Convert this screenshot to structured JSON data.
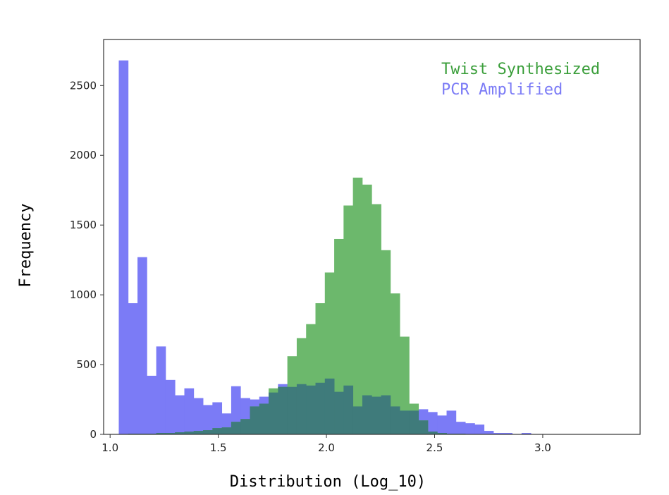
{
  "chart_data": {
    "type": "bar",
    "title": "",
    "xlabel": "Distribution (Log_10)",
    "ylabel": "Frequency",
    "xlim": [
      0.97,
      3.45
    ],
    "ylim": [
      0,
      2830
    ],
    "x_ticks": [
      {
        "value": 1.0,
        "label": "1.0"
      },
      {
        "value": 1.5,
        "label": "1.5"
      },
      {
        "value": 2.0,
        "label": "2.0"
      },
      {
        "value": 2.5,
        "label": "2.5"
      },
      {
        "value": 3.0,
        "label": "3.0"
      }
    ],
    "y_ticks": [
      {
        "value": 0,
        "label": "0"
      },
      {
        "value": 500,
        "label": "500"
      },
      {
        "value": 1000,
        "label": "1000"
      },
      {
        "value": 1500,
        "label": "1500"
      },
      {
        "value": 2000,
        "label": "2000"
      },
      {
        "value": 2500,
        "label": "2500"
      }
    ],
    "grid": false,
    "legend_position": "top-right",
    "bin_width": 0.0433,
    "series": [
      {
        "name": "PCR Amplified",
        "color": "#7b7bf6",
        "x_start": 1.04,
        "values": [
          2680,
          940,
          1270,
          420,
          630,
          390,
          280,
          330,
          260,
          210,
          230,
          150,
          345,
          260,
          250,
          270,
          300,
          360,
          340,
          360,
          350,
          370,
          400,
          305,
          350,
          200,
          280,
          270,
          280,
          200,
          170,
          170,
          180,
          160,
          135,
          170,
          90,
          80,
          70,
          25,
          10,
          10,
          0,
          10
        ]
      },
      {
        "name": "Twist Synthesized",
        "color": "#6cb86c",
        "x_start": 1.04,
        "values": [
          0,
          5,
          5,
          5,
          10,
          10,
          15,
          20,
          25,
          30,
          45,
          50,
          90,
          110,
          200,
          220,
          330,
          340,
          560,
          690,
          790,
          940,
          1160,
          1400,
          1640,
          1840,
          1790,
          1650,
          1320,
          1010,
          700,
          220,
          100,
          20,
          10,
          5,
          5
        ]
      }
    ]
  }
}
